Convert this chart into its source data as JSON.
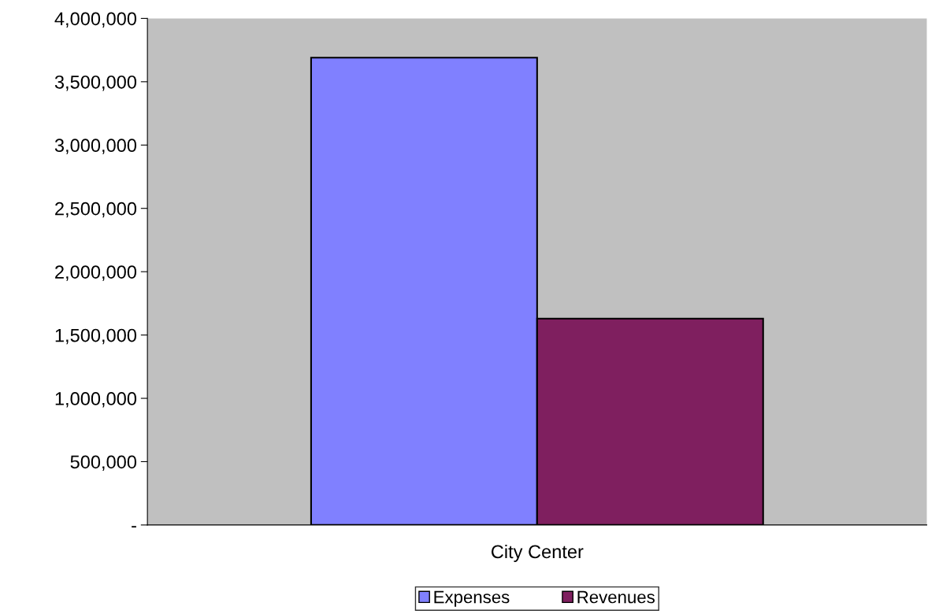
{
  "chart_data": {
    "type": "bar",
    "categories": [
      "City Center"
    ],
    "series": [
      {
        "name": "Expenses",
        "color": "#8080ff",
        "values": [
          3690000
        ]
      },
      {
        "name": "Revenues",
        "color": "#7f1f5f",
        "values": [
          1630000
        ]
      }
    ],
    "ylim": [
      0,
      4000000
    ],
    "yticks": [
      {
        "value": 0,
        "label": "-"
      },
      {
        "value": 500000,
        "label": "500,000"
      },
      {
        "value": 1000000,
        "label": "1,000,000"
      },
      {
        "value": 1500000,
        "label": "1,500,000"
      },
      {
        "value": 2000000,
        "label": "2,000,000"
      },
      {
        "value": 2500000,
        "label": "2,500,000"
      },
      {
        "value": 3000000,
        "label": "3,000,000"
      },
      {
        "value": 3500000,
        "label": "3,500,000"
      },
      {
        "value": 4000000,
        "label": "4,000,000"
      }
    ],
    "grid": false,
    "legend": "bottom"
  }
}
